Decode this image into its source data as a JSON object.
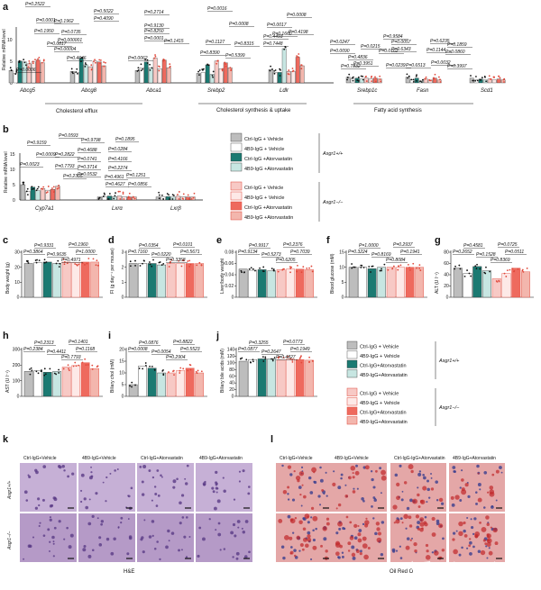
{
  "colors": {
    "ctrl_wt": "#bdbdbd",
    "b9_wt": "#ffffff",
    "ctrl_atv_wt": "#1b7a72",
    "b9_atv_wt": "#c7e6e2",
    "ctrl_ko": "#f7c9c5",
    "b9_ko": "#fde9e7",
    "ctrl_atv_ko": "#ee6a5e",
    "b9_atv_ko": "#f3b6ad",
    "dot_wt": "#111111",
    "dot_ko": "#e0483a",
    "he_tissue": "#b89cc8",
    "oro_tissue": "#e4a7a7"
  },
  "panels": {
    "a": {
      "letter": "a",
      "ylabel": "Relative mRNA level",
      "yticks": [
        "0",
        "5",
        "10"
      ],
      "genes": [
        "Abcg5",
        "Abcg8",
        "Abca1",
        "Srebp2",
        "Ldlr",
        "Srebp1c",
        "Fasn",
        "Scd1"
      ],
      "pvalues": [
        "P=0.2522",
        "P=0.0001",
        "P=0.1962",
        "P=0.5022",
        "P=0.4090",
        "P=0.1950",
        "P=0.0817",
        "P=0.0006",
        "P=0.0735",
        "P=0.000001",
        "P=0.00004",
        "P=0.4646",
        "P=0.9130",
        "P=0.2714",
        "P=0.0062",
        "P=0.8250",
        "P=0.0001",
        "P=0.1415",
        "P=0.0016",
        "P=0.1127",
        "P=0.8390",
        "P=0.8315",
        "P=0.5399",
        "P=0.0008",
        "P=0.0017",
        "P=0.0008",
        "P=0.4493",
        "P=0.7448",
        "P=0.1660",
        "P=0.4198",
        "P=0.0247",
        "P=0.0090",
        "P=0.0215",
        "P=0.7832",
        "P=0.4836",
        "P=0.3951",
        "P=0.0162",
        "P=0.9584",
        "P=0.0057",
        "P=0.6343",
        "P=0.0239",
        "P=0.6513",
        "P=0.6235",
        "P=0.1859",
        "P=0.1144",
        "P=0.0860",
        "P=0.0032",
        "P=0.3997"
      ],
      "groups": [
        "Cholesterol efflux",
        "Cholesterol synthesis & uptake",
        "Fatty acid synthesis"
      ]
    },
    "b": {
      "letter": "b",
      "ylabel": "Relative mRNA level",
      "yticks": [
        "0",
        "5",
        "10",
        "15"
      ],
      "genes": [
        "Cyp7a1",
        "Lxrα",
        "Lxrβ"
      ],
      "pvalues": [
        "P=0.0593",
        "P=0.9159",
        "P=0.0009",
        "P=0.2822",
        "P=0.0023",
        "P=0.7793",
        "P=0.2305",
        "P=0.9798",
        "P=0.4688",
        "P=0.0741",
        "P=0.3714",
        "P=0.0532",
        "P=0.0284",
        "P=0.1895",
        "P=0.4166",
        "P=0.2274",
        "P=0.4961",
        "P=0.4627",
        "P=0.1251",
        "P=0.0856"
      ]
    },
    "c": {
      "letter": "c",
      "ylabel": "Body weight (g)",
      "yticks": [
        "0",
        "10",
        "20",
        "30"
      ],
      "pvalues": [
        "P=0.9331",
        "P=0.1960",
        "P=0.3864",
        "P=0.9635",
        "P=0.4971",
        "P=1.0000"
      ]
    },
    "d": {
      "letter": "d",
      "ylabel": "FI (g day⁻¹ per mouse)",
      "yticks": [
        "0",
        "1",
        "2",
        "3"
      ],
      "pvalues": [
        "P=0.0354",
        "P=0.0101",
        "P=0.7160",
        "P=0.0220",
        "P=0.3358",
        "P=0.5671"
      ]
    },
    "e": {
      "letter": "e",
      "ylabel": "Liver/body weight",
      "yticks": [
        "0",
        "0.02",
        "0.04",
        "0.06",
        "0.08"
      ],
      "pvalues": [
        "P=0.9917",
        "P=0.2376",
        "P=0.9134",
        "P=0.5273",
        "P=0.6205",
        "P=0.7039"
      ]
    },
    "f": {
      "letter": "f",
      "ylabel": "Blood glucose (mM)",
      "yticks": [
        "0",
        "5",
        "10",
        "15"
      ],
      "pvalues": [
        "P=1.0000",
        "P=0.2937",
        "P=0.3224",
        "P=0.8169",
        "P=0.8084",
        "P=0.1941"
      ]
    },
    "g": {
      "letter": "g",
      "ylabel": "ALT (U l⁻¹)",
      "yticks": [
        "0",
        "20",
        "40",
        "60",
        "80"
      ],
      "pvalues": [
        "P=0.4581",
        "P=0.0725",
        "P=0.2652",
        "P=0.1528",
        "P=0.8369",
        "P=0.0511"
      ]
    },
    "h": {
      "letter": "h",
      "ylabel": "AST (U l⁻¹)",
      "yticks": [
        "0",
        "100",
        "200",
        "300"
      ],
      "pvalues": [
        "P=0.2313",
        "P=0.1401",
        "P=0.2384",
        "P=0.4411",
        "P=0.7793",
        "P=0.1168"
      ]
    },
    "i": {
      "letter": "i",
      "ylabel": "Biliary chol (mM)",
      "yticks": [
        "0",
        "5",
        "10",
        "15",
        "20"
      ],
      "pvalues": [
        "P=0.0876",
        "P=0.8822",
        "P=0.0008",
        "P=0.0054",
        "P=0.2904",
        "P=0.5523"
      ]
    },
    "j": {
      "letter": "j",
      "ylabel": "Biliary bile acids (mM)",
      "yticks": [
        "0",
        "20",
        "40",
        "60",
        "80",
        "100",
        "120",
        "140"
      ],
      "pvalues": [
        "P=0.3255",
        "P=0.0773",
        "P=0.0877",
        "P=0.2647",
        "P=0.4827",
        "P=0.1949"
      ]
    }
  },
  "legend_top": {
    "wt": [
      "Ctrl-IgG + Vehicle",
      "4B9-IgG + Vehicle",
      "Ctrl-IgG +Atorvastatin",
      "4B9-IgG +Atorvastatin"
    ],
    "ko": [
      "Ctrl-IgG + Vehicle",
      "4B9-IgG + Vehicle",
      "Ctrl-IgG +Atorvastatin",
      "4B9-IgG +Atorvastatin"
    ],
    "wt_label": "Asgr1+/+",
    "ko_label": "Asgr1−/−"
  },
  "legend_bottom": {
    "wt": [
      "Ctrl-IgG + Vehicle",
      "4B9-IgG + Vehicle",
      "Ctrl-IgG+Atorvastatin",
      "4B9-IgG+Atorvastatin"
    ],
    "ko": [
      "Ctrl-IgG + Vehicle",
      "4B9-IgG + Vehicle",
      "Ctrl-IgG+Atorvastatin",
      "4B9-IgG+Atorvastatin"
    ],
    "wt_label": "Asgr1+/+",
    "ko_label": "Asgr1−/−"
  },
  "histology": {
    "k": {
      "letter": "k",
      "cols": [
        "Ctrl-IgG+Vehicle",
        "4B9-IgG+Vehicle",
        "Ctrl-IgG+Atorvastatin",
        "4B9-IgG+Atorvastatin"
      ],
      "rows": [
        "Asgr1+/+",
        "Asgr1−/−"
      ],
      "caption": "H&E"
    },
    "l": {
      "letter": "l",
      "cols": [
        "Ctrl-IgG+Vehicle",
        "4B9-IgG+Vehicle",
        "Ctrl-IgG-IgG+Atorvastatin",
        "4B9-IgG+Atorvastatin"
      ],
      "caption": "Oil Red O"
    }
  },
  "watermark": "知乎 @TheMetabolist",
  "chart_data": [
    {
      "panel": "c",
      "type": "bar",
      "categories": [
        "WT Ctrl+Veh",
        "WT 4B9+Veh",
        "WT Ctrl+Atv",
        "WT 4B9+Atv",
        "KO Ctrl+Veh",
        "KO 4B9+Veh",
        "KO Ctrl+Atv",
        "KO 4B9+Atv"
      ],
      "values": [
        24,
        24.5,
        25,
        24,
        25,
        24.5,
        25,
        25
      ],
      "ylabel": "Body weight (g)",
      "ylim": [
        0,
        32
      ]
    },
    {
      "panel": "d",
      "type": "bar",
      "categories": [
        "WT Ctrl+Veh",
        "WT 4B9+Veh",
        "WT Ctrl+Atv",
        "WT 4B9+Atv",
        "KO Ctrl+Veh",
        "KO 4B9+Veh",
        "KO Ctrl+Atv",
        "KO 4B9+Atv"
      ],
      "values": [
        2.4,
        2.4,
        2.4,
        2.3,
        2.4,
        2.4,
        2.4,
        2.4
      ],
      "ylabel": "FI (g day-1 per mouse)",
      "ylim": [
        0,
        3.2
      ]
    },
    {
      "panel": "e",
      "type": "bar",
      "categories": [
        "WT Ctrl+Veh",
        "WT 4B9+Veh",
        "WT Ctrl+Atv",
        "WT 4B9+Atv",
        "KO Ctrl+Veh",
        "KO 4B9+Veh",
        "KO Ctrl+Atv",
        "KO 4B9+Atv"
      ],
      "values": [
        0.05,
        0.048,
        0.049,
        0.047,
        0.049,
        0.05,
        0.05,
        0.049
      ],
      "ylabel": "Liver/body weight",
      "ylim": [
        0,
        0.08
      ]
    },
    {
      "panel": "f",
      "type": "bar",
      "categories": [
        "WT Ctrl+Veh",
        "WT 4B9+Veh",
        "WT Ctrl+Atv",
        "WT 4B9+Atv",
        "KO Ctrl+Veh",
        "KO 4B9+Veh",
        "KO Ctrl+Atv",
        "KO 4B9+Atv"
      ],
      "values": [
        10,
        10,
        9.5,
        10,
        10,
        10,
        10,
        10
      ],
      "ylabel": "Blood glucose (mM)",
      "ylim": [
        0,
        15
      ]
    },
    {
      "panel": "g",
      "type": "bar",
      "categories": [
        "WT Ctrl+Veh",
        "WT 4B9+Veh",
        "WT Ctrl+Atv",
        "WT 4B9+Atv",
        "KO Ctrl+Veh",
        "KO 4B9+Veh",
        "KO Ctrl+Atv",
        "KO 4B9+Atv"
      ],
      "values": [
        55,
        45,
        58,
        50,
        35,
        45,
        55,
        48
      ],
      "ylabel": "ALT (U l-1)",
      "ylim": [
        0,
        85
      ]
    },
    {
      "panel": "h",
      "type": "bar",
      "categories": [
        "WT Ctrl+Veh",
        "WT 4B9+Veh",
        "WT Ctrl+Atv",
        "WT 4B9+Atv",
        "KO Ctrl+Veh",
        "KO 4B9+Veh",
        "KO Ctrl+Atv",
        "KO 4B9+Atv"
      ],
      "values": [
        170,
        175,
        165,
        170,
        200,
        210,
        230,
        190
      ],
      "ylabel": "AST (U l-1)",
      "ylim": [
        0,
        320
      ]
    },
    {
      "panel": "i",
      "type": "bar",
      "categories": [
        "WT Ctrl+Veh",
        "WT 4B9+Veh",
        "WT Ctrl+Atv",
        "WT 4B9+Atv",
        "KO Ctrl+Veh",
        "KO 4B9+Veh",
        "KO Ctrl+Atv",
        "KO 4B9+Atv"
      ],
      "values": [
        5,
        13,
        12,
        10,
        10,
        11,
        12,
        10
      ],
      "ylabel": "Biliary chol (mM)",
      "ylim": [
        0,
        20
      ]
    },
    {
      "panel": "j",
      "type": "bar",
      "categories": [
        "WT Ctrl+Veh",
        "WT 4B9+Veh",
        "WT Ctrl+Atv",
        "WT 4B9+Atv",
        "KO Ctrl+Veh",
        "KO 4B9+Veh",
        "KO Ctrl+Atv",
        "KO 4B9+Atv"
      ],
      "values": [
        105,
        110,
        112,
        112,
        108,
        112,
        110,
        108
      ],
      "ylabel": "Biliary bile acids (mM)",
      "ylim": [
        0,
        140
      ]
    }
  ]
}
